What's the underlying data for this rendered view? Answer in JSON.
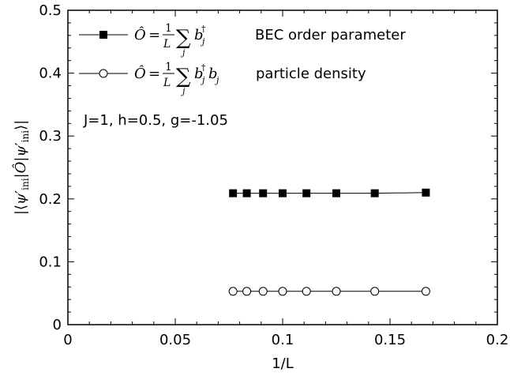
{
  "chart_data": {
    "type": "line",
    "xlabel": "1/L",
    "ylabel": "|⟨ψ′ini|Ô|ψ′ini⟩|",
    "xlim": [
      0,
      0.2
    ],
    "ylim": [
      0,
      0.5
    ],
    "xticks": [
      "0",
      "0.05",
      "0.1",
      "0.15",
      "0.2"
    ],
    "yticks": [
      "0",
      "0.1",
      "0.2",
      "0.3",
      "0.4",
      "0.5"
    ],
    "grid": false,
    "legend_position": "top-left",
    "annotation": "J=1, h=0.5, g=-1.05",
    "series": [
      {
        "name": "BEC order parameter",
        "operator": "Ô = (1/L) Σⱼ bⱼ†",
        "marker": "filled-square",
        "x": [
          0.0769,
          0.0833,
          0.0909,
          0.1,
          0.1111,
          0.125,
          0.1429,
          0.1667
        ],
        "values": [
          0.209,
          0.209,
          0.209,
          0.209,
          0.209,
          0.209,
          0.209,
          0.21
        ]
      },
      {
        "name": "particle density",
        "operator": "Ô = (1/L) Σⱼ bⱼ†bⱼ",
        "marker": "open-circle",
        "x": [
          0.0769,
          0.0833,
          0.0909,
          0.1,
          0.1111,
          0.125,
          0.1429,
          0.1667
        ],
        "values": [
          0.053,
          0.053,
          0.053,
          0.053,
          0.053,
          0.053,
          0.053,
          0.053
        ]
      }
    ]
  }
}
